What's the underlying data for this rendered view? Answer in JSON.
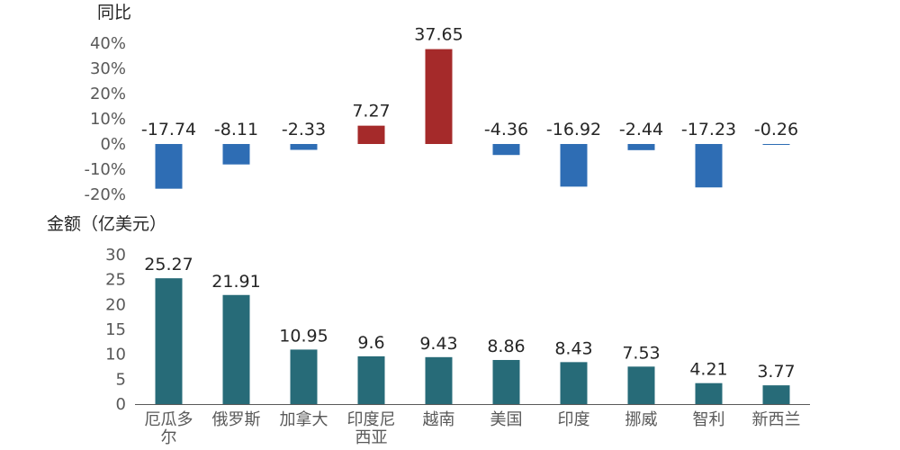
{
  "chart_data": [
    {
      "type": "bar",
      "title": "",
      "ylabel": "同比",
      "ylim": [
        -20,
        40
      ],
      "yticks": [
        "-20%",
        "-10%",
        "0%",
        "10%",
        "20%",
        "30%",
        "40%"
      ],
      "categories": [
        "厄瓜多尔",
        "俄罗斯",
        "加拿大",
        "印度尼西亚",
        "越南",
        "美国",
        "印度",
        "挪威",
        "智利",
        "新西兰"
      ],
      "values": [
        -17.74,
        -8.11,
        -2.33,
        7.27,
        37.65,
        -4.36,
        -16.92,
        -2.44,
        -17.23,
        -0.26
      ],
      "value_labels": [
        "-17.74",
        "-8.11",
        "-2.33",
        "7.27",
        "37.65",
        "-4.36",
        "-16.92",
        "-2.44",
        "-17.23",
        "-0.26"
      ],
      "colors": {
        "positive": "#A52A2A",
        "negative": "#2E6DB4"
      }
    },
    {
      "type": "bar",
      "title": "",
      "ylabel": "金额（亿美元）",
      "ylim": [
        0,
        30
      ],
      "yticks": [
        "0",
        "5",
        "10",
        "15",
        "20",
        "25",
        "30"
      ],
      "categories": [
        "厄瓜多尔",
        "俄罗斯",
        "加拿大",
        "印度尼西亚",
        "越南",
        "美国",
        "印度",
        "挪威",
        "智利",
        "新西兰"
      ],
      "category_lines": [
        [
          "厄瓜多",
          "尔"
        ],
        [
          "俄罗斯"
        ],
        [
          "加拿大"
        ],
        [
          "印度尼",
          "西亚"
        ],
        [
          "越南"
        ],
        [
          "美国"
        ],
        [
          "印度"
        ],
        [
          "挪威"
        ],
        [
          "智利"
        ],
        [
          "新西兰"
        ]
      ],
      "values": [
        25.27,
        21.91,
        10.95,
        9.6,
        9.43,
        8.86,
        8.43,
        7.53,
        4.21,
        3.77
      ],
      "value_labels": [
        "25.27",
        "21.91",
        "10.95",
        "9.6",
        "9.43",
        "8.86",
        "8.43",
        "7.53",
        "4.21",
        "3.77"
      ],
      "colors": {
        "bar": "#276B78",
        "axis": "#595959"
      }
    }
  ]
}
